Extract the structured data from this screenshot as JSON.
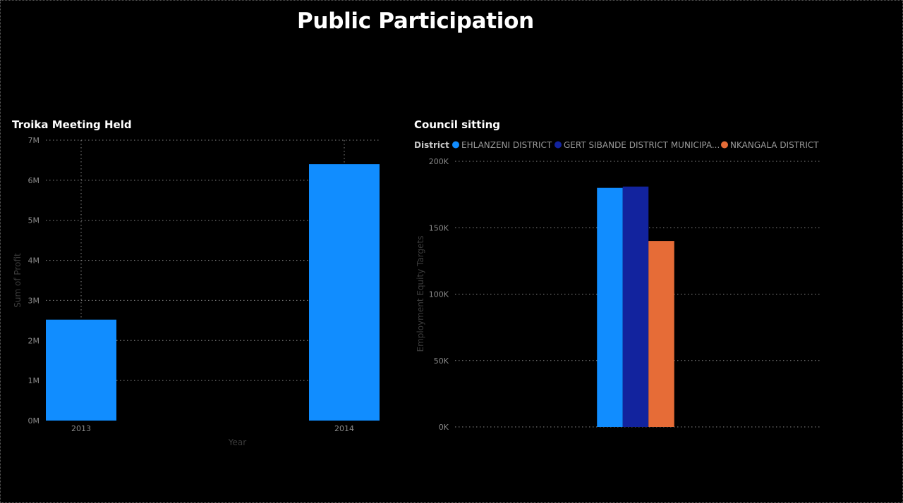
{
  "page": {
    "title": "Public Participation"
  },
  "colors": {
    "background": "#000000",
    "bar_primary": "#118DFF",
    "ehlanzeni": "#118DFF",
    "gert_sibande": "#12239E",
    "nkangala": "#E66C37",
    "gridline": "#8a8a8a"
  },
  "chart_data": [
    {
      "type": "bar",
      "title": "Troika Meeting Held",
      "xlabel": "Year",
      "ylabel": "Sum of Profit",
      "categories": [
        "2013",
        "2014"
      ],
      "values": [
        2520000,
        6400000
      ],
      "ylim": [
        0,
        7000000
      ],
      "yticks": [
        {
          "value": 0,
          "label": "0M"
        },
        {
          "value": 1000000,
          "label": "1M"
        },
        {
          "value": 2000000,
          "label": "2M"
        },
        {
          "value": 3000000,
          "label": "3M"
        },
        {
          "value": 4000000,
          "label": "4M"
        },
        {
          "value": 5000000,
          "label": "5M"
        },
        {
          "value": 6000000,
          "label": "6M"
        },
        {
          "value": 7000000,
          "label": "7M"
        }
      ],
      "grid": true,
      "vertical_grid": true,
      "color": "#118DFF"
    },
    {
      "type": "bar",
      "title": "Council sitting",
      "xlabel": "",
      "ylabel": "Employment Equity Targets",
      "legend_title": "District",
      "legend_position": "top-left",
      "categories": [
        ""
      ],
      "series": [
        {
          "name": "EHLANZENI DISTRICT",
          "values": [
            180000
          ],
          "color": "#118DFF"
        },
        {
          "name": "GERT SIBANDE DISTRICT MUNICIPA...",
          "values": [
            181000
          ],
          "color": "#12239E"
        },
        {
          "name": "NKANGALA DISTRICT",
          "values": [
            140000
          ],
          "color": "#E66C37"
        }
      ],
      "ylim": [
        0,
        200000
      ],
      "yticks": [
        {
          "value": 0,
          "label": "0K"
        },
        {
          "value": 50000,
          "label": "50K"
        },
        {
          "value": 100000,
          "label": "100K"
        },
        {
          "value": 150000,
          "label": "150K"
        },
        {
          "value": 200000,
          "label": "200K"
        }
      ],
      "grid": true
    }
  ]
}
